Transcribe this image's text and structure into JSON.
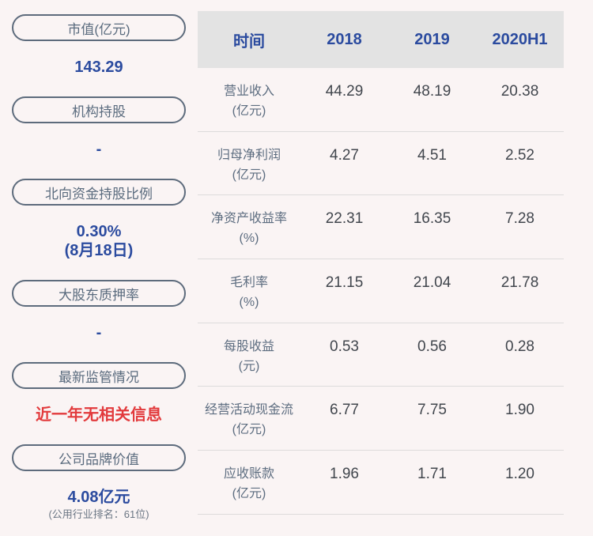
{
  "colors": {
    "background": "#faf4f4",
    "accent_blue": "#2b4b9f",
    "alert_red": "#e23a3c",
    "pill_border": "#5d6b7c",
    "pill_text": "#5a6b7e",
    "table_header_bg": "#e3e3e3",
    "table_value_text": "#41464d",
    "divider": "#dddbdb"
  },
  "sidebar": {
    "items": [
      {
        "label": "市值(亿元)",
        "value": "143.29"
      },
      {
        "label": "机构持股",
        "value": "-"
      },
      {
        "label": "北向资金持股比例",
        "value": "0.30%",
        "value_line2": "(8月18日)"
      },
      {
        "label": "大股东质押率",
        "value": "-"
      },
      {
        "label": "最新监管情况",
        "value": "近一年无相关信息"
      },
      {
        "label": "公司品牌价值",
        "value": "4.08亿元",
        "subtext": "(公用行业排名：61位)"
      }
    ]
  },
  "chart_data": {
    "type": "table",
    "columns": [
      "时间",
      "2018",
      "2019",
      "2020H1"
    ],
    "rows": [
      {
        "name": "营业收入",
        "unit": "(亿元)",
        "values": [
          "44.29",
          "48.19",
          "20.38"
        ]
      },
      {
        "name": "归母净利润",
        "unit": "(亿元)",
        "values": [
          "4.27",
          "4.51",
          "2.52"
        ]
      },
      {
        "name": "净资产收益率",
        "unit": "(%)",
        "values": [
          "22.31",
          "16.35",
          "7.28"
        ]
      },
      {
        "name": "毛利率",
        "unit": "(%)",
        "values": [
          "21.15",
          "21.04",
          "21.78"
        ]
      },
      {
        "name": "每股收益",
        "unit": "(元)",
        "values": [
          "0.53",
          "0.56",
          "0.28"
        ]
      },
      {
        "name": "经营活动现金流",
        "unit": "(亿元)",
        "values": [
          "6.77",
          "7.75",
          "1.90"
        ]
      },
      {
        "name": "应收账款",
        "unit": "(亿元)",
        "values": [
          "1.96",
          "1.71",
          "1.20"
        ]
      }
    ]
  }
}
